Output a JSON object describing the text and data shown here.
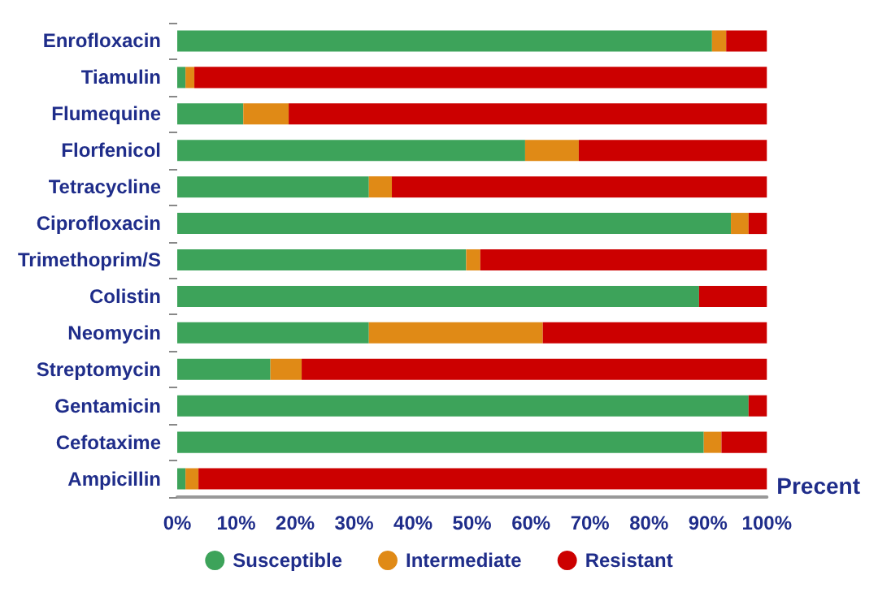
{
  "chart_data": {
    "type": "bar",
    "orientation": "horizontal",
    "stacked": true,
    "xlabel": "Precent",
    "categories": [
      "Enrofloxacin",
      "Tiamulin",
      "Flumequine",
      "Florfenicol",
      "Tetracycline",
      "Ciprofloxacin",
      "Trimethoprim/S",
      "Colistin",
      "Neomycin",
      "Streptomycin",
      "Gentamicin",
      "Cefotaxime",
      "Ampicillin"
    ],
    "series": [
      {
        "name": "Susceptible",
        "color": "#3da35a",
        "values": [
          90.7,
          1.4,
          11.2,
          59.0,
          32.5,
          93.9,
          49.0,
          88.5,
          32.5,
          15.8,
          96.9,
          89.3,
          1.4
        ]
      },
      {
        "name": "Intermediate",
        "color": "#e08a16",
        "values": [
          2.4,
          1.5,
          7.7,
          9.1,
          3.9,
          3.0,
          2.4,
          0,
          29.5,
          5.3,
          0,
          3.0,
          2.2
        ]
      },
      {
        "name": "Resistant",
        "color": "#cc0000",
        "values": [
          6.9,
          97.1,
          81.1,
          31.9,
          63.6,
          3.1,
          48.6,
          11.5,
          38.0,
          78.9,
          3.1,
          7.7,
          96.4
        ]
      }
    ],
    "xlim": [
      0,
      100
    ],
    "xticks": [
      {
        "value": 0,
        "label": "0%"
      },
      {
        "value": 10,
        "label": "10%"
      },
      {
        "value": 20,
        "label": "20%"
      },
      {
        "value": 30,
        "label": "30%"
      },
      {
        "value": 40,
        "label": "40%"
      },
      {
        "value": 50,
        "label": "50%"
      },
      {
        "value": 60,
        "label": "60%"
      },
      {
        "value": 70,
        "label": "70%"
      },
      {
        "value": 80,
        "label": "80%"
      },
      {
        "value": 90,
        "label": "90%"
      },
      {
        "value": 100,
        "label": "100%"
      }
    ],
    "grid": false,
    "legend": "bottom"
  }
}
